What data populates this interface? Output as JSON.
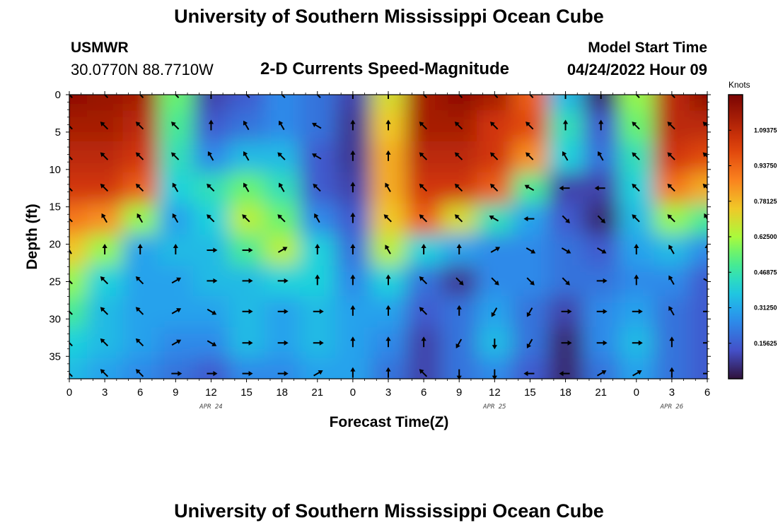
{
  "header": {
    "title": "University of Southern Mississippi Ocean Cube",
    "station": "USMWR",
    "coords": "30.0770N  88.7710W",
    "subtitle": "2-D Currents Speed-Magnitude",
    "start_label": "Model Start Time",
    "start_value": "04/24/2022 Hour 09"
  },
  "footer": {
    "title": "University of Southern Mississippi Ocean Cube"
  },
  "chart_data": {
    "type": "heatmap",
    "title": "2-D Currents Speed-Magnitude",
    "xlabel": "Forecast Time(Z)",
    "ylabel": "Depth (ft)",
    "x_ticks": [
      "0",
      "3",
      "6",
      "9",
      "12",
      "15",
      "18",
      "21",
      "0",
      "3",
      "6",
      "9",
      "12",
      "15",
      "18",
      "21",
      "0",
      "3",
      "6"
    ],
    "date_labels": [
      {
        "label": "APR 24",
        "at_hour": 12
      },
      {
        "label": "APR 25",
        "at_hour": 36
      },
      {
        "label": "APR 26",
        "at_hour": 51
      }
    ],
    "xlim_hours": [
      0,
      54
    ],
    "y_ticks": [
      0,
      5,
      10,
      15,
      20,
      25,
      30,
      35
    ],
    "ylim": [
      0,
      38
    ],
    "y_inverted": true,
    "colorbar": {
      "unit": "Knots",
      "ticks": [
        "0.15625",
        "0.31250",
        "0.46875",
        "0.62500",
        "0.78125",
        "0.93750",
        "1.09375"
      ],
      "range": [
        0,
        1.25
      ]
    },
    "arrow_times_hours": [
      0,
      3,
      6,
      9,
      12,
      15,
      18,
      21,
      24,
      27,
      30,
      33,
      36,
      39,
      42,
      45,
      48,
      51,
      54
    ],
    "arrow_depths": [
      0,
      4.2,
      8.3,
      12.5,
      16.6,
      20.8,
      24.9,
      29.0,
      33.2,
      37.3
    ],
    "speed_grid_knots": [
      [
        1.2,
        1.18,
        1.15,
        0.55,
        0.1,
        0.15,
        0.25,
        0.2,
        0.1,
        0.7,
        1.15,
        1.2,
        1.15,
        0.95,
        0.35,
        0.05,
        0.6,
        1.1,
        1.2
      ],
      [
        1.15,
        1.15,
        1.1,
        0.5,
        0.15,
        0.2,
        0.25,
        0.2,
        0.08,
        0.75,
        1.15,
        1.15,
        1.05,
        1.0,
        0.45,
        0.15,
        0.55,
        1.1,
        1.1
      ],
      [
        1.1,
        1.1,
        1.05,
        0.45,
        0.25,
        0.35,
        0.35,
        0.15,
        0.08,
        0.8,
        1.1,
        1.1,
        1.05,
        0.85,
        0.4,
        0.2,
        0.45,
        1.05,
        1.0
      ],
      [
        1.05,
        1.05,
        0.95,
        0.4,
        0.45,
        0.55,
        0.45,
        0.15,
        0.1,
        0.8,
        1.05,
        1.05,
        0.95,
        0.5,
        0.1,
        0.1,
        0.4,
        0.9,
        0.8
      ],
      [
        0.9,
        0.85,
        0.6,
        0.3,
        0.4,
        0.65,
        0.55,
        0.25,
        0.15,
        0.75,
        0.95,
        0.7,
        0.45,
        0.3,
        0.15,
        0.05,
        0.35,
        0.6,
        0.5
      ],
      [
        0.75,
        0.6,
        0.3,
        0.35,
        0.35,
        0.5,
        0.65,
        0.4,
        0.2,
        0.65,
        0.4,
        0.3,
        0.25,
        0.25,
        0.2,
        0.15,
        0.3,
        0.35,
        0.25
      ],
      [
        0.6,
        0.4,
        0.3,
        0.3,
        0.35,
        0.35,
        0.4,
        0.4,
        0.25,
        0.4,
        0.2,
        0.08,
        0.25,
        0.25,
        0.2,
        0.2,
        0.25,
        0.25,
        0.15
      ],
      [
        0.5,
        0.35,
        0.3,
        0.3,
        0.3,
        0.35,
        0.3,
        0.35,
        0.3,
        0.3,
        0.15,
        0.2,
        0.3,
        0.2,
        0.1,
        0.25,
        0.3,
        0.2,
        0.15
      ],
      [
        0.4,
        0.35,
        0.3,
        0.25,
        0.25,
        0.35,
        0.3,
        0.35,
        0.3,
        0.25,
        0.1,
        0.2,
        0.35,
        0.2,
        0.05,
        0.25,
        0.35,
        0.2,
        0.15
      ],
      [
        0.35,
        0.3,
        0.25,
        0.2,
        0.15,
        0.25,
        0.25,
        0.3,
        0.3,
        0.2,
        0.1,
        0.2,
        0.25,
        0.15,
        0.05,
        0.2,
        0.3,
        0.2,
        0.15
      ]
    ],
    "direction_grid_deg": [
      [
        135,
        135,
        135,
        135,
        180,
        135,
        135,
        135,
        180,
        180,
        135,
        135,
        135,
        135,
        180,
        180,
        135,
        135,
        135
      ],
      [
        135,
        135,
        135,
        135,
        180,
        150,
        150,
        120,
        180,
        180,
        135,
        135,
        135,
        135,
        180,
        180,
        135,
        135,
        135
      ],
      [
        135,
        135,
        135,
        135,
        150,
        150,
        135,
        120,
        180,
        180,
        135,
        135,
        135,
        135,
        150,
        150,
        135,
        135,
        135
      ],
      [
        135,
        135,
        135,
        150,
        135,
        150,
        150,
        135,
        180,
        150,
        135,
        135,
        135,
        120,
        90,
        90,
        135,
        135,
        135
      ],
      [
        135,
        150,
        150,
        150,
        135,
        135,
        135,
        150,
        180,
        135,
        135,
        135,
        120,
        90,
        315,
        315,
        135,
        135,
        150
      ],
      [
        150,
        180,
        180,
        180,
        270,
        270,
        240,
        180,
        180,
        150,
        180,
        180,
        240,
        300,
        300,
        300,
        180,
        150,
        180
      ],
      [
        135,
        135,
        135,
        240,
        270,
        270,
        270,
        180,
        180,
        180,
        135,
        315,
        315,
        315,
        315,
        270,
        180,
        150,
        300
      ],
      [
        135,
        135,
        135,
        240,
        300,
        270,
        270,
        270,
        180,
        180,
        135,
        180,
        30,
        30,
        270,
        270,
        270,
        150,
        270
      ],
      [
        135,
        135,
        135,
        240,
        300,
        270,
        270,
        270,
        180,
        180,
        180,
        30,
        0,
        30,
        270,
        270,
        270,
        180,
        270
      ],
      [
        135,
        135,
        135,
        270,
        270,
        270,
        270,
        240,
        180,
        180,
        135,
        0,
        0,
        90,
        90,
        240,
        240,
        180,
        270
      ]
    ]
  }
}
